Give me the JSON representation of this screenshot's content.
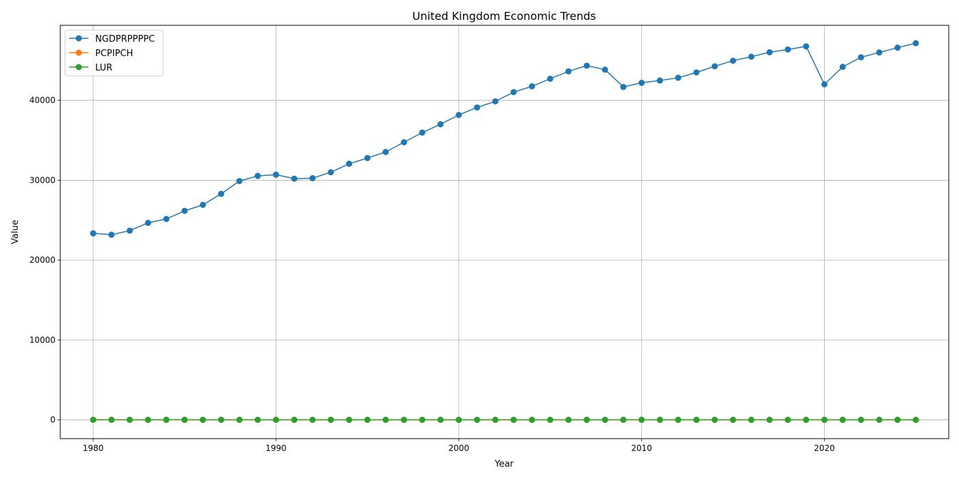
{
  "chart_data": {
    "type": "line",
    "title": "United Kingdom Economic Trends",
    "xlabel": "Year",
    "ylabel": "Value",
    "xlim": [
      1978.2,
      2026.8
    ],
    "ylim": [
      -2350,
      49400
    ],
    "x_ticks": [
      1980,
      1990,
      2000,
      2010,
      2020
    ],
    "y_ticks": [
      0,
      10000,
      20000,
      30000,
      40000
    ],
    "grid": true,
    "legend_position": "top-left",
    "x": [
      1980,
      1981,
      1982,
      1983,
      1984,
      1985,
      1986,
      1987,
      1988,
      1989,
      1990,
      1991,
      1992,
      1993,
      1994,
      1995,
      1996,
      1997,
      1998,
      1999,
      2000,
      2001,
      2002,
      2003,
      2004,
      2005,
      2006,
      2007,
      2008,
      2009,
      2010,
      2011,
      2012,
      2013,
      2014,
      2015,
      2016,
      2017,
      2018,
      2019,
      2020,
      2021,
      2022,
      2023,
      2024,
      2025
    ],
    "series": [
      {
        "name": "NGDPRPPPPC",
        "color": "#1f77b4",
        "values": [
          23350,
          23180,
          23690,
          24660,
          25150,
          26170,
          26920,
          28300,
          29900,
          30550,
          30700,
          30200,
          30260,
          31000,
          32070,
          32780,
          33540,
          34760,
          35970,
          37010,
          38180,
          39110,
          39880,
          41040,
          41760,
          42710,
          43630,
          44350,
          43850,
          41680,
          42200,
          42490,
          42830,
          43500,
          44270,
          44970,
          45470,
          46030,
          46370,
          46770,
          42010,
          44200,
          45400,
          46000,
          46600,
          47160
        ]
      },
      {
        "name": "PCPIPCH",
        "color": "#ff7f0e",
        "values": [
          18.0,
          11.9,
          8.6,
          4.6,
          5.0,
          6.1,
          3.4,
          4.1,
          4.6,
          5.2,
          7.0,
          7.5,
          4.3,
          2.5,
          2.0,
          2.7,
          2.5,
          1.8,
          1.6,
          1.3,
          0.8,
          1.2,
          1.3,
          1.4,
          1.3,
          2.0,
          2.3,
          2.3,
          3.6,
          2.2,
          3.3,
          4.5,
          2.8,
          2.6,
          1.5,
          0.0,
          0.7,
          2.7,
          2.5,
          1.8,
          0.9,
          2.6,
          9.1,
          7.3,
          2.5,
          3.2
        ]
      },
      {
        "name": "LUR",
        "color": "#2ca02c",
        "values": [
          6.8,
          9.6,
          10.7,
          11.5,
          11.8,
          11.4,
          11.3,
          10.4,
          8.6,
          7.2,
          7.1,
          8.9,
          10.0,
          10.4,
          9.5,
          8.6,
          8.1,
          7.0,
          6.3,
          6.0,
          5.5,
          5.1,
          5.2,
          5.0,
          4.8,
          4.8,
          5.4,
          5.3,
          5.7,
          7.6,
          7.9,
          8.1,
          8.0,
          7.6,
          6.2,
          5.4,
          4.9,
          4.4,
          4.1,
          3.8,
          4.6,
          4.5,
          3.9,
          4.0,
          4.3,
          4.5
        ]
      }
    ]
  }
}
